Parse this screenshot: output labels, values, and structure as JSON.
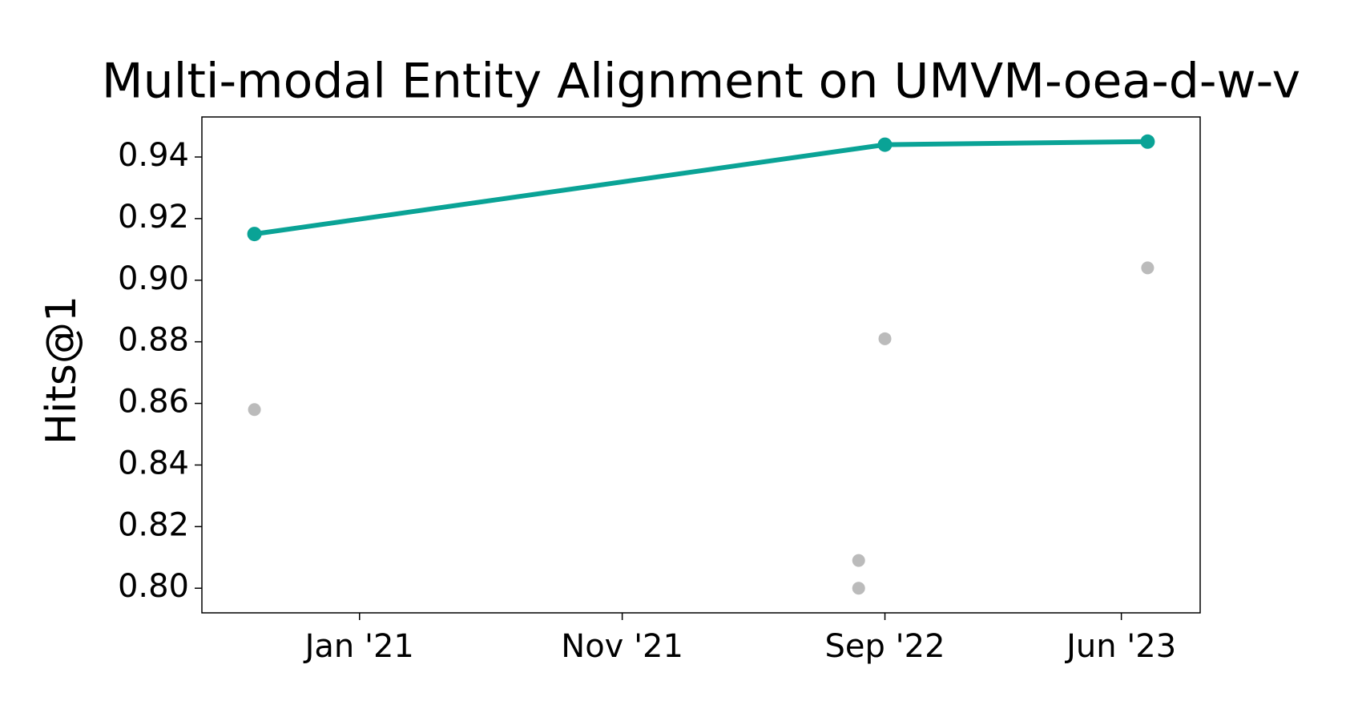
{
  "chart_data": {
    "type": "line",
    "title": "Multi-modal Entity Alignment on UMVM-oea-d-w-v",
    "y_label": "Hits@1",
    "series": [
      {
        "color": "#0aa396",
        "line": true,
        "x": [
          "2020-09",
          "2022-09",
          "2023-07"
        ],
        "values": [
          0.915,
          0.944,
          0.945
        ]
      },
      {
        "color": "#bbbbbb",
        "line": false,
        "x": [
          "2020-09",
          "2022-09",
          "2022-08",
          "2022-08",
          "2023-07"
        ],
        "values": [
          0.858,
          0.881,
          0.809,
          0.8,
          0.904
        ]
      }
    ],
    "xlim": [
      "2020-07",
      "2023-09"
    ],
    "xticks": [
      {
        "value": "2021-01",
        "label": "Jan '21"
      },
      {
        "value": "2021-11",
        "label": "Nov '21"
      },
      {
        "value": "2022-09",
        "label": "Sep '22"
      },
      {
        "value": "2023-06",
        "label": "Jun '23"
      }
    ],
    "ylim": [
      0.792,
      0.953
    ],
    "yticks": [
      {
        "value": 0.8,
        "label": "0.80"
      },
      {
        "value": 0.82,
        "label": "0.82"
      },
      {
        "value": 0.84,
        "label": "0.84"
      },
      {
        "value": 0.86,
        "label": "0.86"
      },
      {
        "value": 0.88,
        "label": "0.88"
      },
      {
        "value": 0.9,
        "label": "0.90"
      },
      {
        "value": 0.92,
        "label": "0.92"
      },
      {
        "value": 0.94,
        "label": "0.94"
      }
    ],
    "grid": false
  }
}
